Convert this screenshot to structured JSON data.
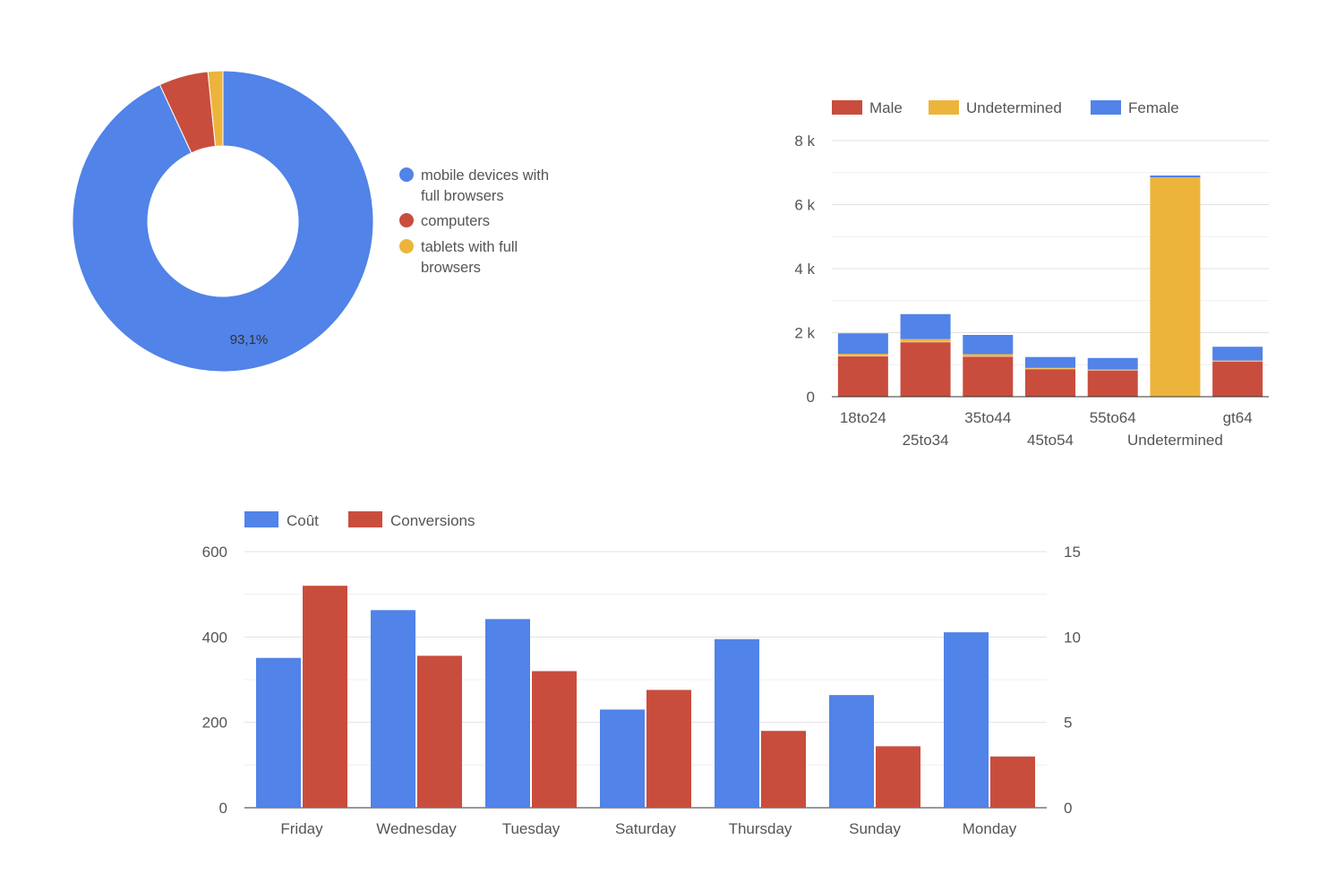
{
  "chart_data": [
    {
      "type": "pie",
      "donut": true,
      "slices": [
        {
          "label": "mobile devices with full browsers",
          "value": 93.1,
          "color": "#5183E8"
        },
        {
          "label": "computers",
          "value": 5.3,
          "color": "#C94D3D"
        },
        {
          "label": "tablets with full browsers",
          "value": 1.6,
          "color": "#EDB43B"
        }
      ],
      "data_labels": [
        "93,1%"
      ],
      "legend_position": "right"
    },
    {
      "type": "bar",
      "stacked": true,
      "categories": [
        "18to24",
        "25to34",
        "35to44",
        "45to54",
        "55to64",
        "Undetermined",
        "gt64"
      ],
      "series": [
        {
          "name": "Male",
          "color": "#C94D3D",
          "values": [
            1260,
            1700,
            1250,
            860,
            820,
            0,
            1100
          ]
        },
        {
          "name": "Undetermined",
          "color": "#EDB43B",
          "values": [
            80,
            100,
            80,
            40,
            30,
            6850,
            30
          ]
        },
        {
          "name": "Female",
          "color": "#5183E8",
          "values": [
            640,
            780,
            600,
            340,
            360,
            60,
            430
          ]
        }
      ],
      "y_ticks": [
        "0",
        "2 k",
        "4 k",
        "6 k",
        "8 k"
      ],
      "ylim": [
        0,
        8000
      ],
      "grid": true,
      "legend_position": "top"
    },
    {
      "type": "bar",
      "categories": [
        "Friday",
        "Wednesday",
        "Tuesday",
        "Saturday",
        "Thursday",
        "Sunday",
        "Monday"
      ],
      "series": [
        {
          "name": "Coût",
          "color": "#5183E8",
          "axis": "left",
          "values": [
            351,
            463,
            442,
            230,
            395,
            264,
            411
          ]
        },
        {
          "name": "Conversions",
          "color": "#C94D3D",
          "axis": "right",
          "values": [
            13,
            8.9,
            8,
            6.9,
            4.5,
            3.6,
            3
          ]
        }
      ],
      "y_left_ticks": [
        "0",
        "200",
        "400",
        "600"
      ],
      "y_left_lim": [
        0,
        600
      ],
      "y_right_ticks": [
        "0",
        "5",
        "10",
        "15"
      ],
      "y_right_lim": [
        0,
        15
      ],
      "grid": true,
      "legend_position": "top"
    }
  ]
}
